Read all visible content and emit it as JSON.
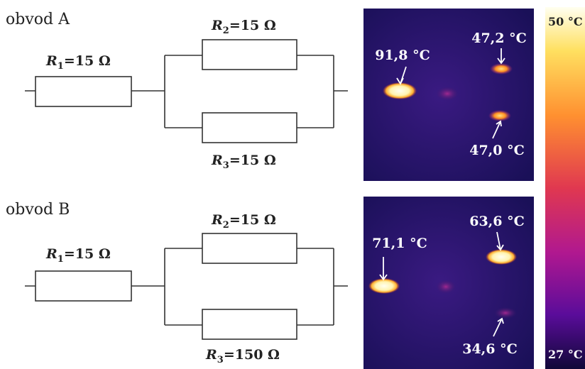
{
  "circuits": [
    {
      "title": "obvod A",
      "resistors": [
        {
          "symbol": "R",
          "index": "1",
          "value": "=15 Ω"
        },
        {
          "symbol": "R",
          "index": "2",
          "value": "=15 Ω"
        },
        {
          "symbol": "R",
          "index": "3",
          "value": "=15 Ω"
        }
      ],
      "temperatures": [
        "91,8 °C",
        "47,2 °C",
        "47,0 °C"
      ]
    },
    {
      "title": "obvod B",
      "resistors": [
        {
          "symbol": "R",
          "index": "1",
          "value": "=15 Ω"
        },
        {
          "symbol": "R",
          "index": "2",
          "value": "=15 Ω"
        },
        {
          "symbol": "R",
          "index": "3",
          "value": "=150 Ω"
        }
      ],
      "temperatures": [
        "71,1 °C",
        "63,6 °C",
        "34,6 °C"
      ]
    }
  ],
  "color_scale": {
    "max": "50 °C",
    "min": "27 °C"
  }
}
